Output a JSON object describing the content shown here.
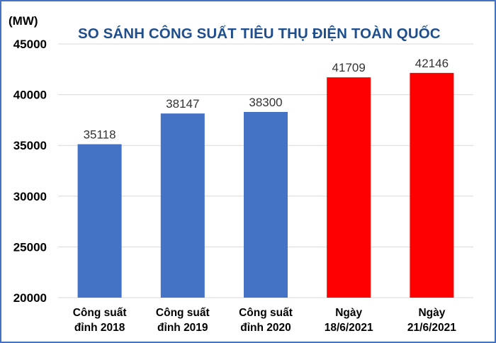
{
  "chart_data": {
    "type": "bar",
    "title": "SO SÁNH CÔNG SUẤT TIÊU THỤ ĐIỆN TOÀN QUỐC",
    "ylabel": "(MW)",
    "xlabel": "",
    "ylim": [
      20000,
      45000
    ],
    "yticks": [
      "45000",
      "40000",
      "35000",
      "30000",
      "25000",
      "20000"
    ],
    "categories": [
      [
        "Công suất",
        "đỉnh 2018"
      ],
      [
        "Công suất",
        "đỉnh 2019"
      ],
      [
        "Công suất",
        "đỉnh 2020"
      ],
      [
        "Ngày",
        "18/6/2021"
      ],
      [
        "Ngày",
        "21/6/2021"
      ]
    ],
    "values": [
      35118,
      38147,
      38300,
      41709,
      42146
    ],
    "data_labels": [
      "35118",
      "38147",
      "38300",
      "41709",
      "42146"
    ],
    "bar_colors": [
      "#4472c4",
      "#4472c4",
      "#4472c4",
      "#ff0000",
      "#ff0000"
    ],
    "grid": "horizontal",
    "legend": "none"
  }
}
